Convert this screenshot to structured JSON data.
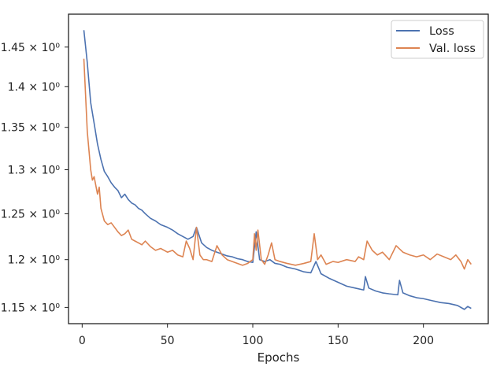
{
  "chart_data": {
    "type": "line",
    "title": "",
    "xlabel": "Epochs",
    "ylabel": "",
    "y_scale": "log",
    "xlim": [
      -8,
      238
    ],
    "ylim": [
      1.1335,
      1.4931
    ],
    "grid": false,
    "legend_position": "top-right",
    "x_ticks": [
      {
        "value": 0,
        "label": "0"
      },
      {
        "value": 50,
        "label": "50"
      },
      {
        "value": 100,
        "label": "100"
      },
      {
        "value": 150,
        "label": "150"
      },
      {
        "value": 200,
        "label": "200"
      }
    ],
    "y_ticks": [
      {
        "value": 1.15,
        "label": "1.15 × 10⁰"
      },
      {
        "value": 1.2,
        "label": "1.2 × 10⁰"
      },
      {
        "value": 1.25,
        "label": "1.25 × 10⁰"
      },
      {
        "value": 1.3,
        "label": "1.3 × 10⁰"
      },
      {
        "value": 1.35,
        "label": "1.35 × 10⁰"
      },
      {
        "value": 1.4,
        "label": "1.4 × 10⁰"
      },
      {
        "value": 1.45,
        "label": "1.45 × 10⁰"
      }
    ],
    "series": [
      {
        "name": "Loss",
        "color": "#4c72b0",
        "points": [
          [
            1,
            1.472
          ],
          [
            3,
            1.43
          ],
          [
            5,
            1.38
          ],
          [
            7,
            1.355
          ],
          [
            9,
            1.33
          ],
          [
            11,
            1.312
          ],
          [
            13,
            1.298
          ],
          [
            15,
            1.292
          ],
          [
            17,
            1.285
          ],
          [
            19,
            1.28
          ],
          [
            21,
            1.276
          ],
          [
            23,
            1.268
          ],
          [
            25,
            1.272
          ],
          [
            27,
            1.266
          ],
          [
            29,
            1.262
          ],
          [
            31,
            1.26
          ],
          [
            33,
            1.256
          ],
          [
            35,
            1.254
          ],
          [
            37,
            1.25
          ],
          [
            40,
            1.245
          ],
          [
            43,
            1.242
          ],
          [
            46,
            1.238
          ],
          [
            50,
            1.235
          ],
          [
            53,
            1.232
          ],
          [
            56,
            1.228
          ],
          [
            59,
            1.225
          ],
          [
            62,
            1.222
          ],
          [
            65,
            1.225
          ],
          [
            67,
            1.235
          ],
          [
            70,
            1.218
          ],
          [
            73,
            1.213
          ],
          [
            76,
            1.21
          ],
          [
            79,
            1.208
          ],
          [
            82,
            1.206
          ],
          [
            85,
            1.204
          ],
          [
            88,
            1.203
          ],
          [
            91,
            1.201
          ],
          [
            94,
            1.2
          ],
          [
            97,
            1.198
          ],
          [
            100,
            1.197
          ],
          [
            102,
            1.23
          ],
          [
            104,
            1.2
          ],
          [
            107,
            1.198
          ],
          [
            110,
            1.2
          ],
          [
            113,
            1.196
          ],
          [
            116,
            1.195
          ],
          [
            120,
            1.192
          ],
          [
            125,
            1.19
          ],
          [
            130,
            1.187
          ],
          [
            134,
            1.186
          ],
          [
            137,
            1.198
          ],
          [
            140,
            1.185
          ],
          [
            145,
            1.18
          ],
          [
            150,
            1.176
          ],
          [
            155,
            1.172
          ],
          [
            160,
            1.17
          ],
          [
            165,
            1.168
          ],
          [
            166,
            1.182
          ],
          [
            168,
            1.17
          ],
          [
            172,
            1.167
          ],
          [
            176,
            1.165
          ],
          [
            180,
            1.164
          ],
          [
            185,
            1.163
          ],
          [
            186,
            1.178
          ],
          [
            188,
            1.165
          ],
          [
            192,
            1.162
          ],
          [
            196,
            1.16
          ],
          [
            200,
            1.159
          ],
          [
            205,
            1.157
          ],
          [
            210,
            1.155
          ],
          [
            215,
            1.154
          ],
          [
            220,
            1.152
          ],
          [
            224,
            1.148
          ],
          [
            226,
            1.151
          ],
          [
            228,
            1.149
          ]
        ]
      },
      {
        "name": "Val. loss",
        "color": "#dd8452",
        "points": [
          [
            1,
            1.435
          ],
          [
            3,
            1.345
          ],
          [
            5,
            1.3
          ],
          [
            6,
            1.288
          ],
          [
            7,
            1.292
          ],
          [
            9,
            1.272
          ],
          [
            10,
            1.28
          ],
          [
            11,
            1.256
          ],
          [
            13,
            1.242
          ],
          [
            15,
            1.238
          ],
          [
            17,
            1.24
          ],
          [
            19,
            1.235
          ],
          [
            21,
            1.23
          ],
          [
            23,
            1.226
          ],
          [
            25,
            1.228
          ],
          [
            27,
            1.232
          ],
          [
            29,
            1.222
          ],
          [
            31,
            1.22
          ],
          [
            33,
            1.218
          ],
          [
            35,
            1.216
          ],
          [
            37,
            1.22
          ],
          [
            40,
            1.214
          ],
          [
            43,
            1.21
          ],
          [
            46,
            1.212
          ],
          [
            50,
            1.208
          ],
          [
            53,
            1.21
          ],
          [
            56,
            1.205
          ],
          [
            59,
            1.203
          ],
          [
            61,
            1.22
          ],
          [
            63,
            1.212
          ],
          [
            65,
            1.2
          ],
          [
            67,
            1.235
          ],
          [
            69,
            1.205
          ],
          [
            71,
            1.2
          ],
          [
            73,
            1.2
          ],
          [
            76,
            1.198
          ],
          [
            79,
            1.215
          ],
          [
            82,
            1.205
          ],
          [
            85,
            1.2
          ],
          [
            88,
            1.198
          ],
          [
            91,
            1.196
          ],
          [
            94,
            1.194
          ],
          [
            97,
            1.196
          ],
          [
            100,
            1.2
          ],
          [
            101,
            1.228
          ],
          [
            102,
            1.21
          ],
          [
            103,
            1.232
          ],
          [
            105,
            1.2
          ],
          [
            107,
            1.195
          ],
          [
            109,
            1.205
          ],
          [
            111,
            1.218
          ],
          [
            113,
            1.2
          ],
          [
            116,
            1.198
          ],
          [
            120,
            1.196
          ],
          [
            125,
            1.194
          ],
          [
            130,
            1.196
          ],
          [
            134,
            1.198
          ],
          [
            136,
            1.228
          ],
          [
            138,
            1.2
          ],
          [
            140,
            1.205
          ],
          [
            143,
            1.195
          ],
          [
            147,
            1.198
          ],
          [
            150,
            1.197
          ],
          [
            155,
            1.2
          ],
          [
            160,
            1.198
          ],
          [
            162,
            1.203
          ],
          [
            165,
            1.2
          ],
          [
            167,
            1.22
          ],
          [
            170,
            1.21
          ],
          [
            173,
            1.205
          ],
          [
            176,
            1.208
          ],
          [
            180,
            1.2
          ],
          [
            184,
            1.215
          ],
          [
            188,
            1.208
          ],
          [
            192,
            1.205
          ],
          [
            196,
            1.203
          ],
          [
            200,
            1.205
          ],
          [
            204,
            1.2
          ],
          [
            208,
            1.206
          ],
          [
            212,
            1.203
          ],
          [
            216,
            1.2
          ],
          [
            219,
            1.205
          ],
          [
            222,
            1.198
          ],
          [
            224,
            1.19
          ],
          [
            226,
            1.2
          ],
          [
            228,
            1.195
          ]
        ]
      }
    ]
  }
}
